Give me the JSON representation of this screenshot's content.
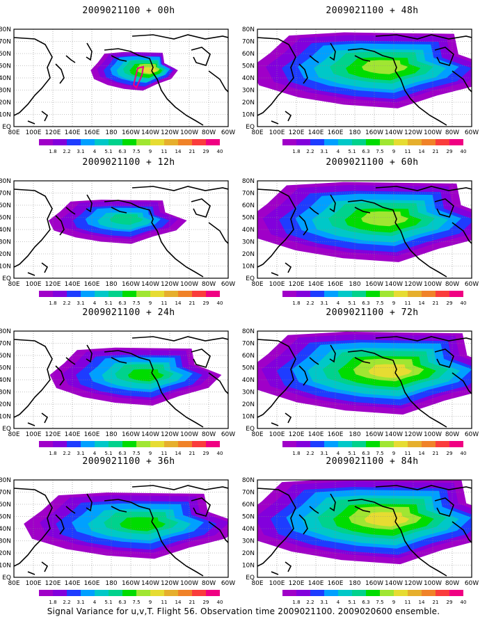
{
  "footer": "Signal Variance for u,v,T. Flight 56. Observation time 2009021100. 2009020600 ensemble.",
  "lat_labels": [
    "80N",
    "70N",
    "60N",
    "50N",
    "40N",
    "30N",
    "20N",
    "10N",
    "EQ"
  ],
  "lon_labels": [
    "80E",
    "100E",
    "120E",
    "140E",
    "160E",
    "180",
    "160W",
    "140W",
    "120W",
    "100W",
    "80W",
    "60W"
  ],
  "colorbar": {
    "labels": [
      "1.8",
      "2.2",
      "3.1",
      "4",
      "5.1",
      "6.3",
      "7.5",
      "9",
      "11",
      "14",
      "21",
      "29",
      "40"
    ],
    "colors": [
      "#a000c8",
      "#8200dc",
      "#1e3cff",
      "#00a0ff",
      "#00c8c8",
      "#00d28c",
      "#00dc00",
      "#a0e632",
      "#e6dc32",
      "#e6af2d",
      "#f08228",
      "#fa3c3c",
      "#f00082"
    ]
  },
  "chart_data": [
    {
      "type": "heatmap",
      "title": "2009021100 + 00h",
      "lead_hours": 0,
      "region": "Pacific / North America",
      "lat_range": [
        "EQ",
        "80N"
      ],
      "lon_range": [
        "80E",
        "60W"
      ],
      "max_level": "14"
    },
    {
      "type": "heatmap",
      "title": "2009021100 + 12h",
      "lead_hours": 12,
      "region": "Pacific / North America",
      "lat_range": [
        "EQ",
        "80N"
      ],
      "lon_range": [
        "80E",
        "60W"
      ],
      "max_level": "6.3"
    },
    {
      "type": "heatmap",
      "title": "2009021100 + 24h",
      "lead_hours": 24,
      "region": "Pacific / North America",
      "lat_range": [
        "EQ",
        "80N"
      ],
      "lon_range": [
        "80E",
        "60W"
      ],
      "max_level": "7.5"
    },
    {
      "type": "heatmap",
      "title": "2009021100 + 36h",
      "lead_hours": 36,
      "region": "Pacific / North America",
      "lat_range": [
        "EQ",
        "80N"
      ],
      "lon_range": [
        "80E",
        "60W"
      ],
      "max_level": "7.5"
    },
    {
      "type": "heatmap",
      "title": "2009021100 + 48h",
      "lead_hours": 48,
      "region": "Pacific / North America",
      "lat_range": [
        "EQ",
        "80N"
      ],
      "lon_range": [
        "80E",
        "60W"
      ],
      "max_level": "9"
    },
    {
      "type": "heatmap",
      "title": "2009021100 + 60h",
      "lead_hours": 60,
      "region": "Pacific / North America",
      "lat_range": [
        "EQ",
        "80N"
      ],
      "lon_range": [
        "80E",
        "60W"
      ],
      "max_level": "9"
    },
    {
      "type": "heatmap",
      "title": "2009021100 + 72h",
      "lead_hours": 72,
      "region": "Pacific / North America",
      "lat_range": [
        "EQ",
        "80N"
      ],
      "lon_range": [
        "80E",
        "60W"
      ],
      "max_level": "11"
    },
    {
      "type": "heatmap",
      "title": "2009021100 + 84h",
      "lead_hours": 84,
      "region": "Pacific / North America",
      "lat_range": [
        "EQ",
        "80N"
      ],
      "lon_range": [
        "80E",
        "60W"
      ],
      "max_level": "11"
    }
  ]
}
